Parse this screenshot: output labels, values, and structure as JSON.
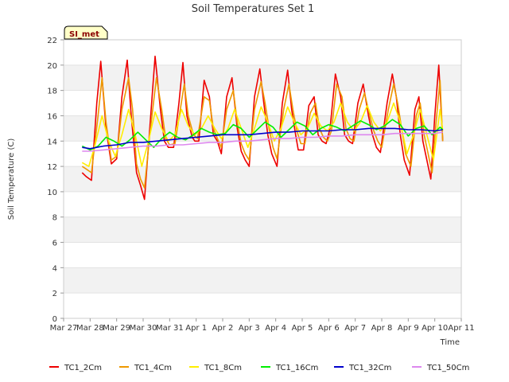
{
  "chart_data": {
    "type": "line",
    "title": "Soil Temperatures Set 1",
    "xlabel": "Time",
    "ylabel": "Soil Temperature (C)",
    "ylim": [
      0,
      22
    ],
    "yticks": [
      0,
      2,
      4,
      6,
      8,
      10,
      12,
      14,
      16,
      18,
      20,
      22
    ],
    "xlim": [
      0,
      15
    ],
    "xticks": [
      0,
      1,
      2,
      3,
      4,
      5,
      6,
      7,
      8,
      9,
      10,
      11,
      12,
      13,
      14,
      15
    ],
    "xtick_labels": [
      "Mar 27",
      "Mar 28",
      "Mar 29",
      "Mar 30",
      "Mar 31",
      "Apr 1",
      "Apr 2",
      "Apr 3",
      "Apr 4",
      "Apr 5",
      "Apr 6",
      "Apr 7",
      "Apr 8",
      "Apr 9",
      "Apr 10",
      "Apr 11"
    ],
    "grid": "horizontal-bands",
    "legend_position": "bottom",
    "station_badge": "SI_met",
    "series": [
      {
        "name": "TC1_2Cm",
        "color": "#ee0000",
        "x": [
          0.7,
          0.85,
          1.05,
          1.25,
          1.4,
          1.6,
          1.8,
          2.0,
          2.2,
          2.4,
          2.55,
          2.75,
          2.9,
          3.05,
          3.25,
          3.45,
          3.65,
          3.8,
          3.95,
          4.15,
          4.35,
          4.5,
          4.65,
          4.85,
          4.95,
          5.1,
          5.3,
          5.5,
          5.65,
          5.8,
          5.95,
          6.15,
          6.35,
          6.55,
          6.7,
          6.85,
          7.0,
          7.2,
          7.4,
          7.55,
          7.7,
          7.85,
          8.05,
          8.25,
          8.45,
          8.6,
          8.75,
          8.85,
          9.05,
          9.25,
          9.45,
          9.6,
          9.75,
          9.9,
          10.05,
          10.25,
          10.45,
          10.6,
          10.75,
          10.9,
          11.1,
          11.3,
          11.5,
          11.65,
          11.8,
          11.95,
          12.2,
          12.4,
          12.55,
          12.7,
          12.85,
          13.05,
          13.25,
          13.4,
          13.55,
          13.7,
          13.85,
          14.0,
          14.15,
          14.3
        ],
        "y": [
          11.5,
          11.2,
          10.9,
          17.0,
          20.3,
          15.0,
          12.2,
          12.6,
          17.5,
          20.4,
          16.0,
          11.5,
          10.5,
          9.4,
          15.0,
          20.7,
          16.5,
          14.0,
          13.5,
          13.5,
          17.0,
          20.2,
          16.0,
          14.3,
          14.0,
          14.0,
          18.8,
          17.5,
          14.5,
          14.0,
          13.0,
          17.5,
          19.0,
          15.0,
          13.2,
          12.5,
          12.0,
          17.5,
          19.7,
          17.0,
          14.5,
          13.0,
          12.0,
          17.0,
          19.6,
          16.5,
          14.5,
          13.3,
          13.3,
          16.8,
          17.5,
          14.5,
          14.0,
          13.8,
          15.0,
          19.3,
          17.5,
          14.5,
          14.0,
          13.8,
          17.0,
          18.5,
          16.0,
          14.5,
          13.5,
          13.1,
          17.0,
          19.3,
          17.5,
          14.5,
          12.5,
          11.3,
          16.5,
          17.5,
          14.0,
          12.5,
          11.0,
          16.0,
          20.0,
          14.0
        ]
      },
      {
        "name": "TC1_4Cm",
        "color": "#ee9900",
        "x": [
          0.7,
          0.85,
          1.05,
          1.3,
          1.45,
          1.6,
          1.8,
          2.0,
          2.2,
          2.45,
          2.6,
          2.75,
          2.9,
          3.05,
          3.25,
          3.5,
          3.7,
          3.85,
          4.0,
          4.2,
          4.4,
          4.55,
          4.7,
          4.9,
          5.05,
          5.3,
          5.5,
          5.65,
          5.8,
          5.95,
          6.15,
          6.4,
          6.55,
          6.7,
          6.85,
          7.0,
          7.2,
          7.45,
          7.6,
          7.75,
          7.9,
          8.05,
          8.3,
          8.5,
          8.65,
          8.8,
          8.95,
          9.1,
          9.3,
          9.5,
          9.65,
          9.8,
          9.95,
          10.1,
          10.3,
          10.5,
          10.65,
          10.8,
          10.95,
          11.15,
          11.35,
          11.55,
          11.7,
          11.85,
          12.0,
          12.25,
          12.45,
          12.6,
          12.75,
          12.9,
          13.1,
          13.3,
          13.45,
          13.6,
          13.75,
          13.9,
          14.05,
          14.2,
          14.3
        ],
        "y": [
          12.0,
          11.8,
          11.5,
          16.0,
          19.0,
          15.5,
          12.5,
          12.8,
          16.5,
          19.0,
          16.5,
          12.2,
          11.0,
          10.3,
          14.5,
          19.0,
          16.5,
          14.2,
          13.7,
          13.8,
          16.5,
          18.5,
          16.0,
          14.5,
          14.2,
          17.5,
          17.2,
          15.0,
          14.2,
          13.5,
          16.5,
          18.0,
          15.5,
          13.8,
          13.0,
          12.5,
          16.5,
          18.7,
          17.0,
          15.0,
          13.5,
          12.6,
          16.5,
          18.5,
          16.5,
          14.8,
          13.8,
          13.8,
          16.2,
          17.0,
          15.0,
          14.3,
          14.0,
          14.8,
          18.5,
          17.5,
          15.0,
          14.2,
          14.0,
          16.5,
          17.8,
          16.0,
          14.8,
          14.0,
          13.5,
          16.5,
          18.5,
          17.0,
          15.0,
          13.0,
          12.0,
          16.0,
          17.0,
          14.5,
          13.0,
          11.5,
          15.5,
          18.8,
          14.0
        ]
      },
      {
        "name": "TC1_8Cm",
        "color": "#ffee00",
        "x": [
          0.7,
          0.95,
          1.2,
          1.45,
          1.7,
          1.95,
          2.2,
          2.45,
          2.7,
          2.95,
          3.2,
          3.45,
          3.7,
          3.95,
          4.2,
          4.45,
          4.7,
          4.95,
          5.2,
          5.45,
          5.7,
          5.95,
          6.2,
          6.45,
          6.7,
          6.95,
          7.2,
          7.45,
          7.7,
          7.95,
          8.2,
          8.45,
          8.7,
          8.95,
          9.2,
          9.45,
          9.7,
          9.95,
          10.2,
          10.45,
          10.7,
          10.95,
          11.2,
          11.45,
          11.7,
          11.95,
          12.2,
          12.45,
          12.7,
          12.95,
          13.2,
          13.45,
          13.7,
          13.95,
          14.2,
          14.3
        ],
        "y": [
          12.3,
          12.0,
          13.8,
          16.0,
          14.0,
          12.8,
          14.5,
          16.5,
          14.5,
          12.0,
          14.0,
          16.3,
          15.0,
          14.0,
          14.5,
          16.5,
          15.2,
          14.5,
          15.0,
          16.0,
          15.0,
          14.2,
          15.0,
          16.5,
          15.0,
          13.5,
          15.0,
          16.7,
          15.5,
          14.0,
          15.0,
          16.7,
          15.5,
          14.5,
          15.0,
          16.2,
          15.2,
          14.8,
          15.5,
          17.0,
          15.5,
          14.8,
          15.5,
          16.8,
          15.5,
          14.8,
          15.5,
          17.0,
          15.5,
          13.0,
          14.5,
          16.5,
          14.5,
          12.5,
          16.5,
          14.8
        ]
      },
      {
        "name": "TC1_16Cm",
        "color": "#00ee00",
        "x": [
          0.7,
          1.0,
          1.3,
          1.6,
          1.9,
          2.2,
          2.5,
          2.8,
          3.1,
          3.4,
          3.7,
          4.0,
          4.3,
          4.6,
          4.9,
          5.2,
          5.5,
          5.8,
          6.1,
          6.4,
          6.7,
          7.0,
          7.3,
          7.6,
          7.9,
          8.2,
          8.5,
          8.8,
          9.1,
          9.4,
          9.7,
          10.0,
          10.3,
          10.6,
          10.9,
          11.2,
          11.5,
          11.8,
          12.1,
          12.4,
          12.7,
          13.0,
          13.3,
          13.6,
          13.9,
          14.2,
          14.3
        ],
        "y": [
          13.6,
          13.3,
          13.6,
          14.3,
          14.0,
          13.6,
          14.1,
          14.7,
          14.1,
          13.5,
          14.2,
          14.7,
          14.3,
          14.1,
          14.5,
          15.0,
          14.7,
          14.5,
          14.6,
          15.3,
          15.0,
          14.3,
          14.9,
          15.5,
          15.1,
          14.3,
          14.9,
          15.5,
          15.2,
          14.5,
          15.0,
          15.3,
          15.1,
          14.8,
          15.2,
          15.6,
          15.3,
          14.9,
          15.2,
          15.7,
          15.3,
          14.4,
          15.0,
          15.2,
          14.5,
          15.1,
          14.9
        ]
      },
      {
        "name": "TC1_32Cm",
        "color": "#0000cc",
        "x": [
          0.7,
          1.0,
          1.5,
          2.0,
          2.5,
          3.0,
          3.5,
          4.0,
          4.5,
          5.0,
          5.5,
          6.0,
          6.5,
          7.0,
          7.5,
          8.0,
          8.5,
          9.0,
          9.5,
          10.0,
          10.5,
          11.0,
          11.5,
          12.0,
          12.5,
          13.0,
          13.5,
          14.0,
          14.3
        ],
        "y": [
          13.5,
          13.4,
          13.6,
          13.7,
          13.9,
          13.9,
          14.0,
          14.1,
          14.2,
          14.3,
          14.4,
          14.5,
          14.5,
          14.5,
          14.6,
          14.7,
          14.7,
          14.8,
          14.8,
          14.8,
          14.9,
          14.9,
          15.0,
          15.0,
          15.0,
          14.9,
          14.9,
          14.8,
          14.9
        ]
      },
      {
        "name": "TC1_50Cm",
        "color": "#dd88ee",
        "x": [
          0.7,
          1.0,
          1.5,
          2.0,
          2.5,
          3.0,
          3.5,
          4.0,
          4.5,
          5.0,
          5.5,
          6.0,
          6.5,
          7.0,
          7.5,
          8.0,
          8.5,
          9.0,
          9.5,
          10.0,
          10.5,
          11.0,
          11.5,
          12.0,
          12.5,
          13.0,
          13.5,
          14.0,
          14.3
        ],
        "y": [
          13.2,
          13.2,
          13.3,
          13.4,
          13.5,
          13.6,
          13.6,
          13.7,
          13.7,
          13.8,
          13.9,
          13.9,
          14.0,
          14.0,
          14.1,
          14.2,
          14.2,
          14.3,
          14.3,
          14.4,
          14.4,
          14.5,
          14.5,
          14.5,
          14.6,
          14.6,
          14.6,
          14.6,
          14.7
        ]
      }
    ]
  }
}
